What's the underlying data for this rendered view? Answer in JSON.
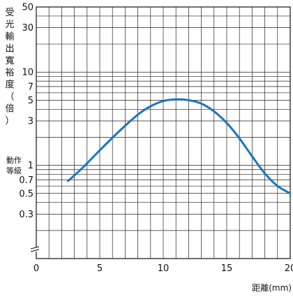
{
  "chart_data": {
    "type": "line",
    "title": "",
    "ylabel": "受光輸出寬裕度（倍）",
    "ylabel_chars": [
      "受",
      "光",
      "輸",
      "出",
      "寬",
      "裕",
      "度",
      "（",
      "倍",
      "）"
    ],
    "xlabel": "距離(mm)",
    "operating_level_label": "動作等級",
    "operating_level_label_lines": [
      "動作",
      "等級"
    ],
    "xlim": [
      0,
      20
    ],
    "x_ticks": [
      0,
      5,
      10,
      15,
      20
    ],
    "y_scale": "log",
    "ylim": [
      0.1,
      50
    ],
    "y_tick_labels": [
      {
        "value": 50,
        "label": "50"
      },
      {
        "value": 30,
        "label": "30"
      },
      {
        "value": 10,
        "label": "10"
      },
      {
        "value": 7,
        "label": "7"
      },
      {
        "value": 5,
        "label": "5"
      },
      {
        "value": 3,
        "label": "3"
      },
      {
        "value": 1,
        "label": "1"
      },
      {
        "value": 0.7,
        "label": "0.7"
      },
      {
        "value": 0.5,
        "label": "0.5"
      },
      {
        "value": 0.3,
        "label": "0.3"
      }
    ],
    "y_gridlines": [
      50,
      40,
      30,
      20,
      10,
      9,
      8,
      7,
      6,
      5,
      4,
      3,
      2,
      1,
      0.9,
      0.8,
      0.7,
      0.6,
      0.5,
      0.4,
      0.3,
      0.2
    ],
    "grid": true,
    "axis_break": true,
    "series": [
      {
        "color": "#1b75bb",
        "x": [
          2.5,
          3.5,
          5,
          6.5,
          8,
          9,
          10,
          11,
          12,
          13,
          14,
          15,
          16,
          17,
          18,
          19,
          20
        ],
        "y": [
          0.68,
          0.9,
          1.45,
          2.3,
          3.5,
          4.3,
          4.9,
          5.1,
          5.0,
          4.6,
          3.8,
          2.85,
          1.95,
          1.25,
          0.82,
          0.6,
          0.5
        ]
      }
    ]
  }
}
